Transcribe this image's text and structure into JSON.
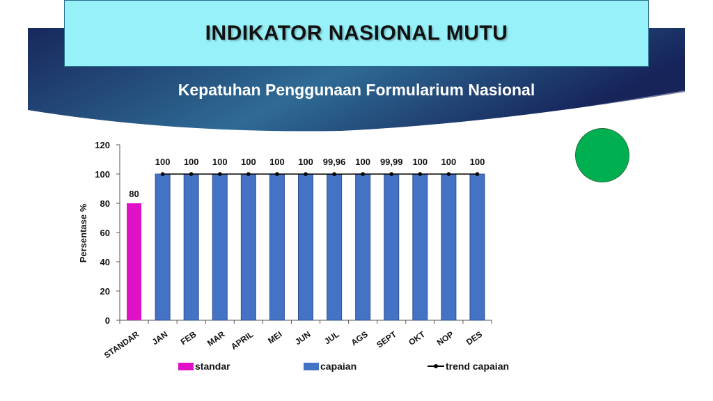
{
  "header": {
    "title": "INDIKATOR NASIONAL MUTU",
    "subtitle": "Kepatuhan Penggunaan Formularium Nasional"
  },
  "indicator": {
    "status_color": "#00b050"
  },
  "colors": {
    "standard": "#e010c6",
    "achievement": "#4472c4",
    "trend": "#000000",
    "banner_dark": "#1b2a5e",
    "banner_light": "#3d7fa6"
  },
  "chart_data": {
    "type": "bar",
    "categories": [
      "STANDAR",
      "JAN",
      "FEB",
      "MAR",
      "APRIL",
      "MEI",
      "JUN",
      "JUL",
      "AGS",
      "SEPT",
      "OKT",
      "NOP",
      "DES"
    ],
    "series": [
      {
        "name": "standar",
        "type": "bar",
        "values": [
          80,
          null,
          null,
          null,
          null,
          null,
          null,
          null,
          null,
          null,
          null,
          null,
          null
        ]
      },
      {
        "name": "capaian",
        "type": "bar",
        "values": [
          null,
          100,
          100,
          100,
          100,
          100,
          100,
          99.96,
          100,
          99.99,
          100,
          100,
          100
        ]
      },
      {
        "name": "trend capaian",
        "type": "line",
        "values": [
          null,
          100,
          100,
          100,
          100,
          100,
          100,
          99.96,
          100,
          99.99,
          100,
          100,
          100
        ]
      }
    ],
    "data_labels": [
      "80",
      "100",
      "100",
      "100",
      "100",
      "100",
      "100",
      "99,96",
      "100",
      "99,99",
      "100",
      "100",
      "100"
    ],
    "ylabel": "Persentase %",
    "xlabel": "",
    "ylim": [
      0,
      120
    ],
    "yticks": [
      "0",
      "20",
      "40",
      "60",
      "80",
      "100",
      "120"
    ],
    "grid": false,
    "legend_position": "bottom"
  },
  "legend": {
    "items": [
      {
        "label": "standar"
      },
      {
        "label": "capaian"
      },
      {
        "label": "trend capaian"
      }
    ]
  }
}
